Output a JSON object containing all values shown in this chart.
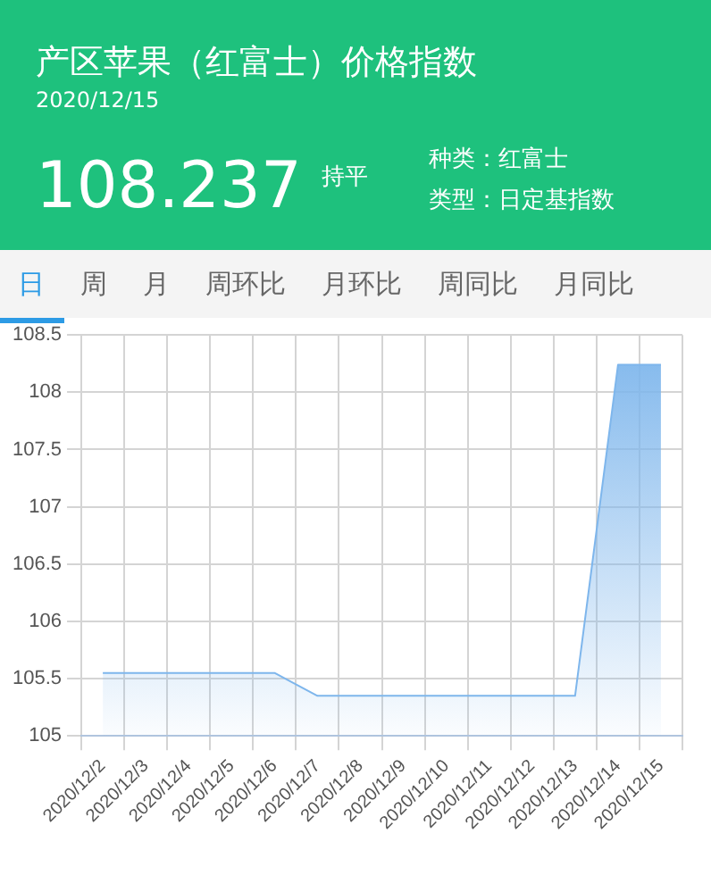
{
  "chart_data": {
    "type": "area",
    "title": "产区苹果（红富士）价格指数",
    "subtitle": "2020/12/15",
    "annotations": [
      "108.237",
      "持平",
      "种类：红富士",
      "类型：日定基指数",
      "日",
      "周",
      "月",
      "周环比",
      "月环比",
      "周同比",
      "月同比"
    ],
    "categories": [
      "2020/12/2",
      "2020/12/3",
      "2020/12/4",
      "2020/12/5",
      "2020/12/6",
      "2020/12/7",
      "2020/12/8",
      "2020/12/9",
      "2020/12/10",
      "2020/12/11",
      "2020/12/12",
      "2020/12/13",
      "2020/12/14",
      "2020/12/15"
    ],
    "series": [
      {
        "color": "#7eb6ec",
        "values": [
          105.55,
          105.55,
          105.55,
          105.55,
          105.55,
          105.35,
          105.35,
          105.35,
          105.35,
          105.35,
          105.35,
          105.35,
          108.24,
          108.24
        ]
      }
    ],
    "ylim": [
      105,
      108.5
    ],
    "yticks": [
      105,
      105.5,
      106,
      106.5,
      107,
      107.5,
      108,
      108.5
    ],
    "grid": true,
    "legend": false,
    "marker": "none"
  }
}
